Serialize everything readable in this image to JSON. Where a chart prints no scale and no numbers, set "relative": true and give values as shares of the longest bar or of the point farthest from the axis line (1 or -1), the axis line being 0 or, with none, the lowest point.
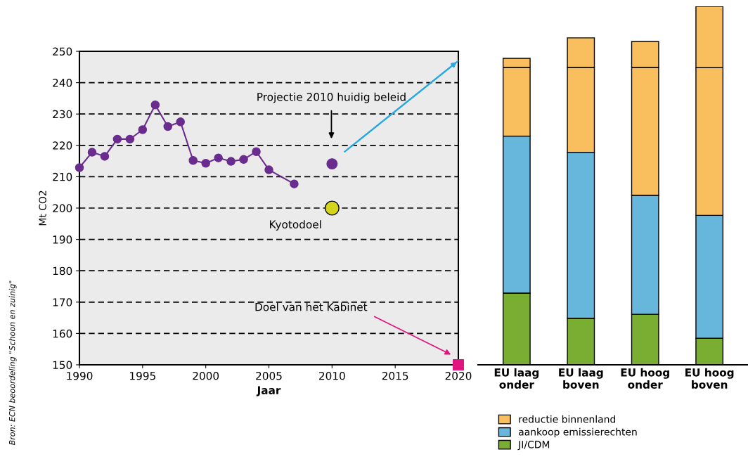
{
  "chart_data": [
    {
      "type": "line",
      "xlabel": "Jaar",
      "ylabel": "Mt CO2",
      "xlim": [
        1990,
        2020
      ],
      "xticks": [
        1990,
        1995,
        2000,
        2005,
        2010,
        2015,
        2020
      ],
      "ylim": [
        150,
        250
      ],
      "yticks": [
        150,
        160,
        170,
        180,
        190,
        200,
        210,
        220,
        230,
        240,
        250
      ],
      "grid": "y",
      "series": [
        {
          "type": "line",
          "color": "#6a2c8e",
          "marker": "circle",
          "x": [
            1990,
            1991,
            1992,
            1993,
            1994,
            1995,
            1996,
            1997,
            1998,
            1999,
            2000,
            2001,
            2002,
            2003,
            2004,
            2005,
            2007
          ],
          "values": [
            212.9,
            217.8,
            216.5,
            222,
            222,
            225,
            232.9,
            226,
            227.5,
            215.2,
            214.3,
            216,
            214.9,
            215.5,
            218,
            212.2,
            207.7
          ]
        },
        {
          "type": "scatter",
          "color": "#6a2c8e",
          "marker": "circle",
          "x": [
            2010
          ],
          "values": [
            214.1
          ]
        },
        {
          "type": "scatter",
          "color": "#d4d41c",
          "marker": "circle",
          "x": [
            2010
          ],
          "values": [
            200
          ]
        },
        {
          "type": "scatter",
          "color": "#e0157f",
          "marker": "square",
          "x": [
            2020
          ],
          "values": [
            150
          ]
        },
        {
          "type": "line",
          "color": "#2aa8e0",
          "marker": "none",
          "x": [
            2011,
            2020
          ],
          "values": [
            218,
            247
          ]
        }
      ],
      "annotations": [
        "Projectie 2010 huidig beleid",
        "Kyotodoel",
        "Doel van het Kabinet",
        "Bron: ECN beoordeling \"Schoon en zuinig\""
      ]
    },
    {
      "type": "bar",
      "stacked": true,
      "categories": [
        "EU laag\nonder",
        "EU laag\nboven",
        "EU hoog\nonder",
        "EU hoog\nboven"
      ],
      "relative": true,
      "legend": "bottom",
      "series": [
        {
          "name": "JI/CDM",
          "color": "#7aae32",
          "values": [
            0.2,
            0.13,
            0.141,
            0.074
          ]
        },
        {
          "name": "aankoop emissierechten",
          "color": "#67b7dd",
          "values": [
            0.438,
            0.463,
            0.332,
            0.343
          ]
        },
        {
          "name": "reductie binnenland",
          "color": "#f9bf5f",
          "values": [
            0.192,
            0.237,
            0.357,
            0.412
          ]
        },
        {
          "color": "#f9bf5f",
          "values": [
            0.025,
            0.082,
            0.072,
            0.171
          ]
        }
      ]
    }
  ]
}
